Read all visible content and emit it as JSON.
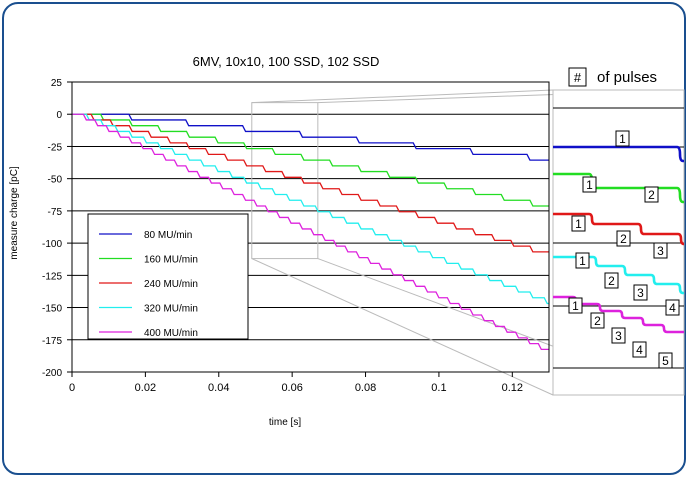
{
  "chart_data": {
    "type": "line",
    "title": "6MV, 10x10, 100 SSD, 102 SSD",
    "xlabel": "time [s]",
    "ylabel": "measure charge [pC]",
    "xlim": [
      0,
      0.13
    ],
    "ylim": [
      -200,
      25
    ],
    "xticks": [
      0,
      0.02,
      0.04,
      0.06,
      0.08,
      0.1,
      0.12
    ],
    "xtick_labels": [
      "0",
      "0.02",
      "0.04",
      "0.06",
      "0.08",
      "0.1",
      "0.12"
    ],
    "yticks": [
      25,
      0,
      -25,
      -50,
      -75,
      -100,
      -125,
      -150,
      -175,
      -200
    ],
    "ytick_labels": [
      "25",
      "0",
      "-25",
      "-50",
      "-75",
      "-100",
      "-125",
      "-150",
      "-175",
      "-200"
    ],
    "grid": "horizontal",
    "legend_position": "lower-left",
    "series": [
      {
        "name": "80 MU/min",
        "color": "#1010c8",
        "pulse_period": 0.0155,
        "pulse_charge": 4.45
      },
      {
        "name": "160 MU/min",
        "color": "#22dd22",
        "pulse_period": 0.0078,
        "pulse_charge": 4.45
      },
      {
        "name": "240 MU/min",
        "color": "#e01818",
        "pulse_period": 0.0052,
        "pulse_charge": 4.45
      },
      {
        "name": "320 MU/min",
        "color": "#22eeee",
        "pulse_period": 0.0039,
        "pulse_charge": 4.45
      },
      {
        "name": "400 MU/min",
        "color": "#dd22dd",
        "pulse_period": 0.0031,
        "pulse_charge": 4.45
      }
    ],
    "zoom_window": {
      "x_range": [
        0.049,
        0.067
      ],
      "y_range": [
        -112,
        9
      ]
    },
    "inset": {
      "title_symbol": "#",
      "title_text": "of pulses",
      "pulse_labels": [
        [
          "1"
        ],
        [
          "1",
          "2"
        ],
        [
          "1",
          "2",
          "3"
        ],
        [
          "1",
          "2",
          "3",
          "4"
        ],
        [
          "1",
          "2",
          "3",
          "4",
          "5"
        ]
      ]
    }
  }
}
